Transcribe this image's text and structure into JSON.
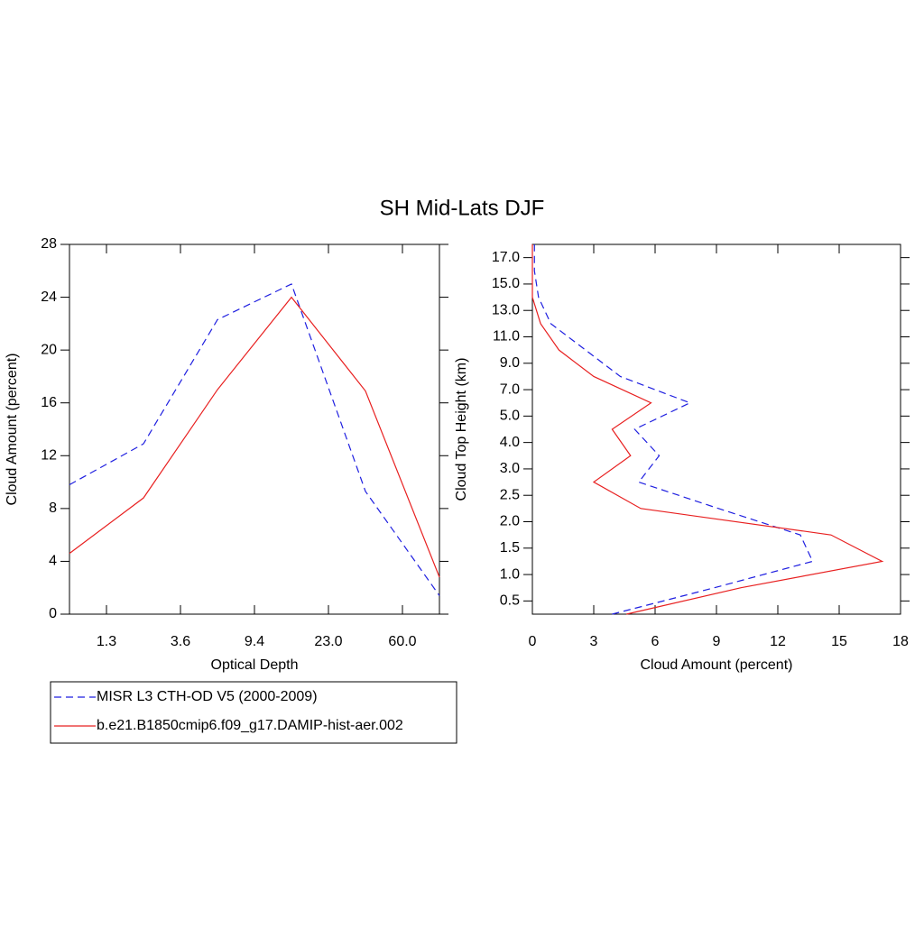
{
  "title": "SH Mid-Lats DJF",
  "chart_data": [
    {
      "type": "line",
      "xlabel": "Optical Depth",
      "ylabel": "Cloud Amount (percent)",
      "x": [
        0,
        1,
        2,
        3,
        4,
        5
      ],
      "xlim": [
        0,
        5
      ],
      "xticks": [
        {
          "value": 0.5,
          "label": "1.3"
        },
        {
          "value": 1.5,
          "label": "3.6"
        },
        {
          "value": 2.5,
          "label": "9.4"
        },
        {
          "value": 3.5,
          "label": "23.0"
        },
        {
          "value": 4.5,
          "label": "60.0"
        }
      ],
      "ylim": [
        0,
        28
      ],
      "yticks": [
        0,
        4,
        8,
        12,
        16,
        20,
        24,
        28
      ],
      "series": [
        {
          "name": "MISR L3 CTH-OD V5 (2000-2009)",
          "color": "#1f1fe0",
          "dashed": true,
          "values": [
            9.8,
            12.9,
            22.3,
            25.0,
            9.3,
            1.4
          ]
        },
        {
          "name": "b.e21.B1850cmip6.f09_g17.DAMIP-hist-aer.002",
          "color": "#e82020",
          "dashed": false,
          "values": [
            4.6,
            8.8,
            17.0,
            24.0,
            16.9,
            2.8
          ]
        }
      ]
    },
    {
      "type": "line",
      "xlabel": "Cloud Amount (percent)",
      "ylabel": "Cloud Top Height (km)",
      "y": [
        0,
        1,
        2,
        3,
        4,
        5,
        6,
        7,
        8,
        9,
        10,
        11,
        12,
        13,
        14
      ],
      "ylim": [
        0,
        14
      ],
      "yticks": [
        {
          "value": 0.5,
          "label": "0.5"
        },
        {
          "value": 1.5,
          "label": "1.0"
        },
        {
          "value": 2.5,
          "label": "1.5"
        },
        {
          "value": 3.5,
          "label": "2.0"
        },
        {
          "value": 4.5,
          "label": "2.5"
        },
        {
          "value": 5.5,
          "label": "3.0"
        },
        {
          "value": 6.5,
          "label": "4.0"
        },
        {
          "value": 7.5,
          "label": "5.0"
        },
        {
          "value": 8.5,
          "label": "7.0"
        },
        {
          "value": 9.5,
          "label": "9.0"
        },
        {
          "value": 10.5,
          "label": "11.0"
        },
        {
          "value": 11.5,
          "label": "13.0"
        },
        {
          "value": 12.5,
          "label": "15.0"
        },
        {
          "value": 13.5,
          "label": "17.0"
        }
      ],
      "xlim": [
        0,
        18
      ],
      "xticks": [
        0,
        3,
        6,
        9,
        12,
        15,
        18
      ],
      "series": [
        {
          "name": "MISR L3 CTH-OD V5 (2000-2009)",
          "color": "#1f1fe0",
          "dashed": true,
          "values": [
            3.9,
            8.9,
            13.7,
            13.1,
            9.1,
            5.2,
            6.2,
            5.0,
            7.7,
            4.3,
            2.6,
            0.9,
            0.3,
            0.1,
            0.1
          ]
        },
        {
          "name": "b.e21.B1850cmip6.f09_g17.DAMIP-hist-aer.002",
          "color": "#e82020",
          "dashed": false,
          "values": [
            4.6,
            10.2,
            17.1,
            14.6,
            5.3,
            3.0,
            4.8,
            3.9,
            5.8,
            3.0,
            1.3,
            0.4,
            0,
            0,
            0
          ]
        }
      ]
    }
  ]
}
